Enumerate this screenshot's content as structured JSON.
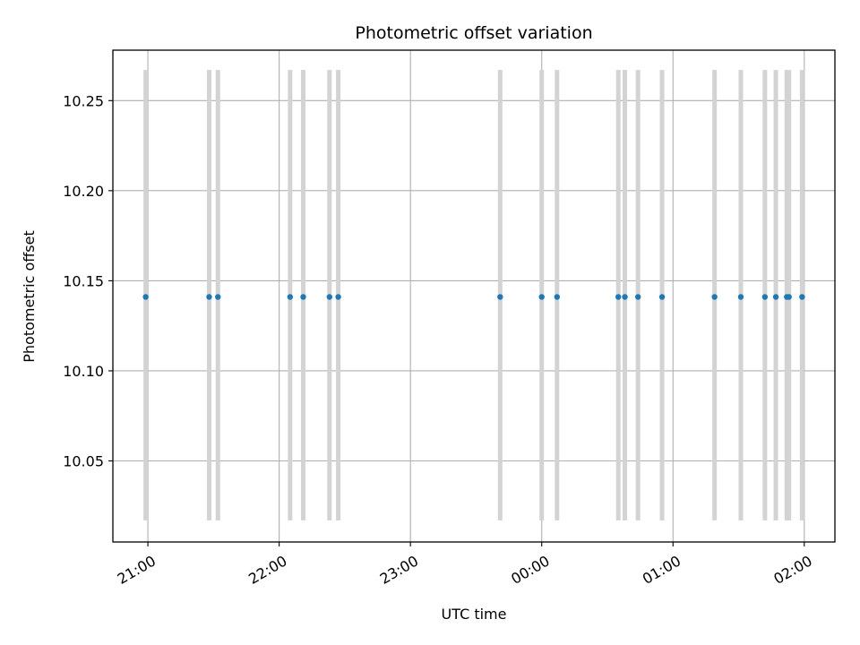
{
  "chart_data": {
    "type": "scatter",
    "title": "Photometric offset variation",
    "xlabel": "UTC time",
    "ylabel": "Photometric offset",
    "x_axis_type": "time",
    "xlim": [
      "20:44",
      "02:14"
    ],
    "ylim": [
      10.005,
      10.278
    ],
    "grid": true,
    "x_ticks": [
      "21:00",
      "22:00",
      "23:00",
      "00:00",
      "01:00",
      "02:00"
    ],
    "x_tick_values": [
      "21:00",
      "22:00",
      "23:00",
      "00:00",
      "01:00",
      "02:00"
    ],
    "y_ticks": [
      "10.05",
      "10.10",
      "10.15",
      "10.20",
      "10.25"
    ],
    "y_tick_values": [
      10.05,
      10.1,
      10.15,
      10.2,
      10.25
    ],
    "error_bar_color": "#d3d3d3",
    "point_color": "#1f77b4",
    "error_low": 10.017,
    "error_high": 10.267,
    "points": [
      {
        "x": "20:59",
        "y": 10.141
      },
      {
        "x": "21:28",
        "y": 10.141
      },
      {
        "x": "21:32",
        "y": 10.141
      },
      {
        "x": "22:05",
        "y": 10.141
      },
      {
        "x": "22:11",
        "y": 10.141
      },
      {
        "x": "22:23",
        "y": 10.141
      },
      {
        "x": "22:27",
        "y": 10.141
      },
      {
        "x": "23:41",
        "y": 10.141
      },
      {
        "x": "00:00",
        "y": 10.141
      },
      {
        "x": "00:07",
        "y": 10.141
      },
      {
        "x": "00:35",
        "y": 10.141
      },
      {
        "x": "00:38",
        "y": 10.141
      },
      {
        "x": "00:44",
        "y": 10.141
      },
      {
        "x": "00:55",
        "y": 10.141
      },
      {
        "x": "01:19",
        "y": 10.141
      },
      {
        "x": "01:31",
        "y": 10.141
      },
      {
        "x": "01:42",
        "y": 10.141
      },
      {
        "x": "01:47",
        "y": 10.141
      },
      {
        "x": "01:52",
        "y": 10.141
      },
      {
        "x": "01:53",
        "y": 10.141
      },
      {
        "x": "01:59",
        "y": 10.141
      }
    ]
  }
}
